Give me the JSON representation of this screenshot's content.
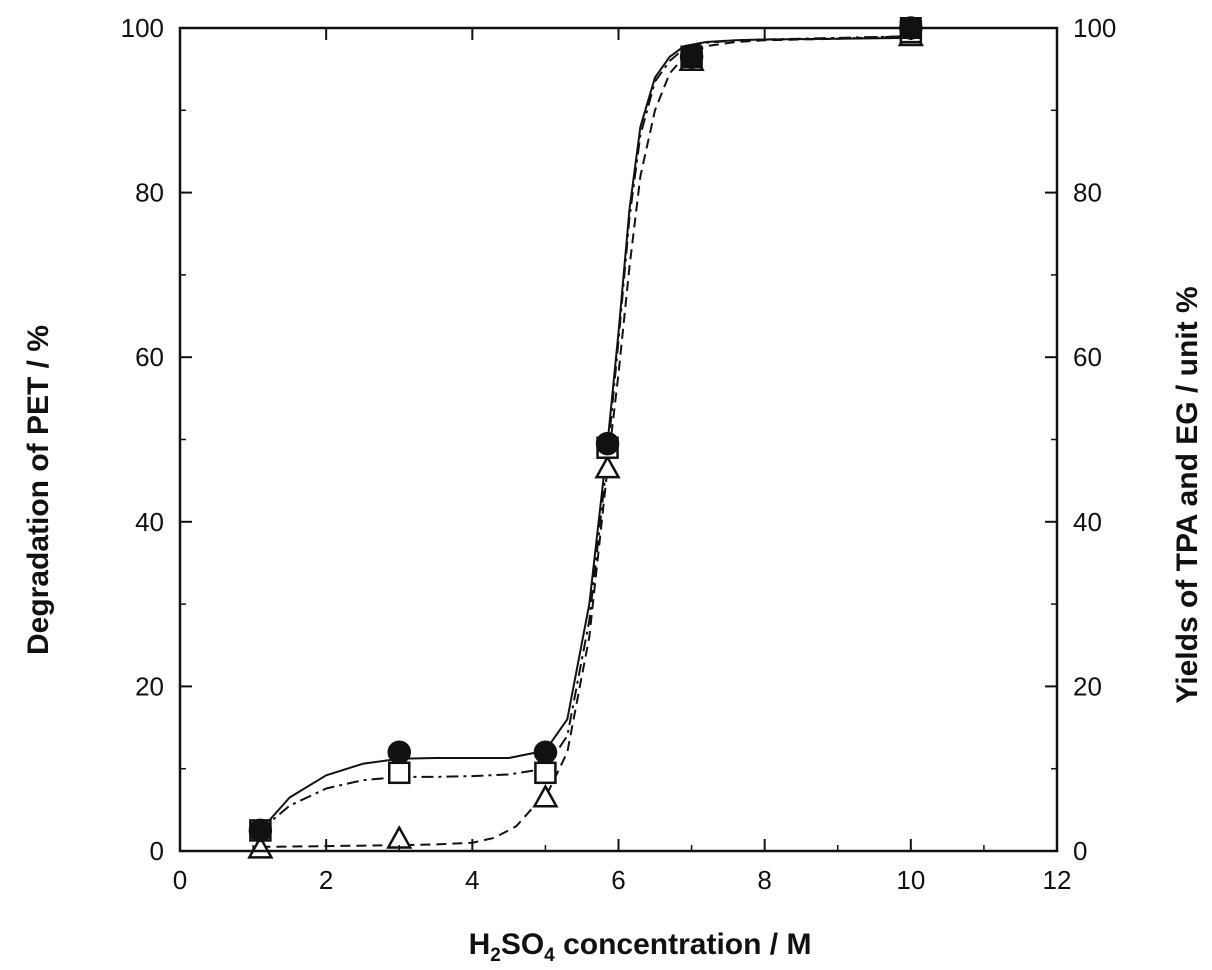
{
  "chart_data": {
    "type": "line",
    "title": "",
    "xlabel": {
      "prefix": "H",
      "sub1": "2",
      "mid": "SO",
      "sub2": "4",
      "suffix": " concentration / M"
    },
    "ylabel_left": "Degradation of PET / %",
    "ylabel_right": "Yields of TPA and EG / unit %",
    "xlim": [
      0,
      12
    ],
    "ylim": [
      0,
      100
    ],
    "x_ticks": [
      "0",
      "2",
      "4",
      "6",
      "8",
      "10",
      "12"
    ],
    "y_ticks": [
      "0",
      "20",
      "40",
      "60",
      "80",
      "100"
    ],
    "grid": false,
    "legend": "none",
    "series": [
      {
        "marker": "filled-circle",
        "line_style": "solid",
        "axis": "left",
        "x": [
          1.1,
          3,
          5,
          5.85,
          7,
          10
        ],
        "y": [
          2.5,
          12,
          12,
          49.5,
          96.5,
          100
        ],
        "curve_x": [
          1.1,
          1.5,
          2,
          2.5,
          3,
          3.5,
          4,
          4.5,
          5,
          5.3,
          5.6,
          5.85,
          6.0,
          6.15,
          6.3,
          6.5,
          6.7,
          6.9,
          7.2,
          7.6,
          8,
          9,
          10
        ],
        "curve_y": [
          2.5,
          6.5,
          9.2,
          10.6,
          11.2,
          11.3,
          11.3,
          11.3,
          12.2,
          16,
          30,
          49.5,
          63,
          78,
          88,
          94,
          96.5,
          97.8,
          98.3,
          98.5,
          98.6,
          98.7,
          98.8
        ]
      },
      {
        "marker": "open-square",
        "line_style": "dash-dot",
        "axis": "right",
        "x": [
          1.1,
          3,
          5,
          5.85,
          7,
          10
        ],
        "y": [
          2.5,
          9.5,
          9.5,
          49,
          96.5,
          99.5
        ],
        "curve_x": [
          1.1,
          1.5,
          2,
          2.5,
          3,
          3.5,
          4,
          4.5,
          5,
          5.3,
          5.6,
          5.85,
          6.0,
          6.15,
          6.3,
          6.5,
          6.7,
          6.9,
          7.2,
          7.6,
          8,
          9,
          10
        ],
        "curve_y": [
          2.5,
          5.5,
          7.6,
          8.6,
          9.0,
          9.0,
          9.1,
          9.3,
          10,
          14,
          28,
          48,
          62,
          77,
          87,
          93.5,
          96,
          97.5,
          98.2,
          98.5,
          98.6,
          98.8,
          99
        ]
      },
      {
        "marker": "open-triangle",
        "line_style": "dashed",
        "axis": "right",
        "x": [
          1.1,
          3,
          5,
          5.85,
          7,
          10
        ],
        "y": [
          0.3,
          1.5,
          6.5,
          46.5,
          96,
          99
        ],
        "curve_x": [
          1.1,
          2,
          3,
          3.5,
          4,
          4.3,
          4.6,
          4.8,
          5,
          5.3,
          5.6,
          5.85,
          6.0,
          6.15,
          6.3,
          6.5,
          6.7,
          6.9,
          7.2,
          7.6,
          8,
          9,
          10
        ],
        "curve_y": [
          0.5,
          0.6,
          0.7,
          0.8,
          1.0,
          1.6,
          3,
          5,
          6.5,
          12,
          26,
          46.5,
          58,
          71,
          82,
          90,
          94.5,
          96.5,
          97.8,
          98.3,
          98.5,
          98.7,
          99
        ]
      }
    ]
  }
}
